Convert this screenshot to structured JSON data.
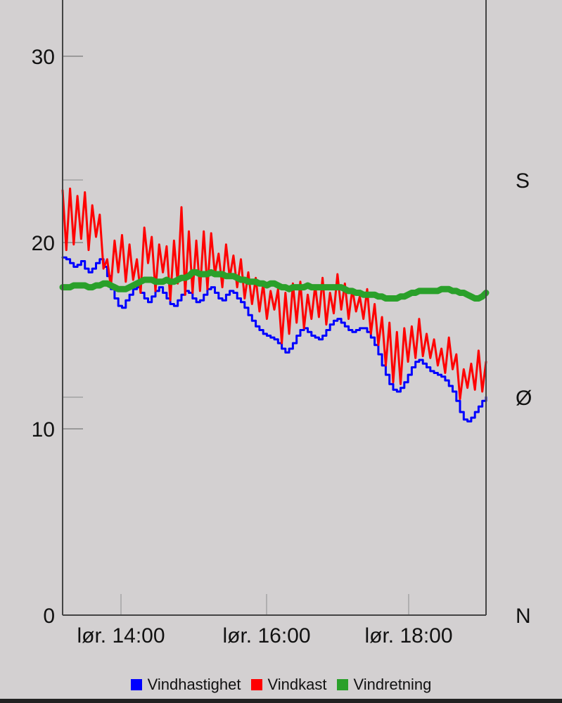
{
  "chart_data": {
    "type": "line",
    "x_ticks": [
      "lør. 14:00",
      "lør. 16:00",
      "lør. 18:00"
    ],
    "y_ticks": [
      "0",
      "10",
      "20",
      "30"
    ],
    "y_right_ticks": [
      "N",
      "Ø",
      "S"
    ],
    "ylim": [
      0,
      30
    ],
    "grid": false,
    "legend_position": "bottom",
    "series": [
      {
        "name": "Vindhastighet",
        "color": "#0000ff",
        "axis": "left",
        "values": [
          19.2,
          19.1,
          18.9,
          18.7,
          18.8,
          19.0,
          18.6,
          18.4,
          18.6,
          18.9,
          19.1,
          18.7,
          18.2,
          17.5,
          17.0,
          16.6,
          16.5,
          16.9,
          17.2,
          17.5,
          17.6,
          17.3,
          17.0,
          16.8,
          17.1,
          17.4,
          17.6,
          17.3,
          17.0,
          16.7,
          16.6,
          16.9,
          17.2,
          17.4,
          17.3,
          17.0,
          16.8,
          16.9,
          17.2,
          17.5,
          17.6,
          17.3,
          17.0,
          16.9,
          17.2,
          17.4,
          17.3,
          17.0,
          16.8,
          16.5,
          16.1,
          15.8,
          15.5,
          15.3,
          15.1,
          15.0,
          14.9,
          14.8,
          14.6,
          14.3,
          14.1,
          14.3,
          14.6,
          15.0,
          15.3,
          15.4,
          15.2,
          15.0,
          14.9,
          14.8,
          15.0,
          15.3,
          15.6,
          15.8,
          15.9,
          15.7,
          15.5,
          15.3,
          15.2,
          15.3,
          15.4,
          15.4,
          15.2,
          14.9,
          14.5,
          14.0,
          13.4,
          12.9,
          12.4,
          12.1,
          12.0,
          12.2,
          12.5,
          12.9,
          13.3,
          13.6,
          13.7,
          13.5,
          13.3,
          13.1,
          13.0,
          12.9,
          12.8,
          12.6,
          12.3,
          12.0,
          11.5,
          10.9,
          10.5,
          10.4,
          10.6,
          10.9,
          11.2,
          11.5,
          11.7
        ]
      },
      {
        "name": "Vindkast",
        "color": "#ff0000",
        "axis": "left",
        "values": [
          22.8,
          19.6,
          22.9,
          19.9,
          22.5,
          20.2,
          22.7,
          19.6,
          22.0,
          20.3,
          21.5,
          18.6,
          19.1,
          17.6,
          20.1,
          18.4,
          20.4,
          17.9,
          19.9,
          18.0,
          19.1,
          17.3,
          20.8,
          18.9,
          20.3,
          17.4,
          19.9,
          18.4,
          19.8,
          16.9,
          20.1,
          17.8,
          21.9,
          17.2,
          20.6,
          17.3,
          20.1,
          17.4,
          20.6,
          17.5,
          20.5,
          18.3,
          19.4,
          17.6,
          19.9,
          18.1,
          19.3,
          17.6,
          19.1,
          17.0,
          18.4,
          16.7,
          18.1,
          16.3,
          17.8,
          15.9,
          17.4,
          16.4,
          17.5,
          14.6,
          17.3,
          15.1,
          17.8,
          15.7,
          17.9,
          15.4,
          17.2,
          15.9,
          17.7,
          16.0,
          18.1,
          15.6,
          17.3,
          16.2,
          18.3,
          16.4,
          17.8,
          15.9,
          17.5,
          16.3,
          17.1,
          15.9,
          17.5,
          15.1,
          16.7,
          14.5,
          16.0,
          13.4,
          15.7,
          12.5,
          15.2,
          12.4,
          15.4,
          13.6,
          15.5,
          13.8,
          15.9,
          13.9,
          15.1,
          13.8,
          14.8,
          13.4,
          14.3,
          13.0,
          14.9,
          13.2,
          14.0,
          11.6,
          13.2,
          12.2,
          13.5,
          12.1,
          14.2,
          12.0,
          13.6
        ]
      },
      {
        "name": "Vindretning",
        "color": "#2aa02a",
        "axis": "right",
        "values": [
          17.6,
          17.6,
          17.6,
          17.7,
          17.7,
          17.7,
          17.7,
          17.6,
          17.6,
          17.7,
          17.7,
          17.8,
          17.8,
          17.7,
          17.6,
          17.5,
          17.5,
          17.5,
          17.6,
          17.7,
          17.8,
          17.9,
          18.0,
          18.0,
          18.0,
          17.9,
          17.9,
          17.9,
          18.0,
          17.9,
          17.9,
          18.0,
          18.1,
          18.1,
          18.2,
          18.4,
          18.4,
          18.3,
          18.3,
          18.3,
          18.4,
          18.3,
          18.3,
          18.3,
          18.2,
          18.2,
          18.2,
          18.1,
          18.0,
          18.0,
          17.9,
          17.9,
          17.9,
          17.8,
          17.8,
          17.7,
          17.8,
          17.8,
          17.7,
          17.6,
          17.6,
          17.5,
          17.6,
          17.6,
          17.6,
          17.6,
          17.7,
          17.6,
          17.6,
          17.6,
          17.6,
          17.6,
          17.6,
          17.6,
          17.6,
          17.6,
          17.5,
          17.4,
          17.4,
          17.3,
          17.3,
          17.2,
          17.2,
          17.2,
          17.2,
          17.1,
          17.1,
          17.0,
          17.0,
          17.0,
          17.0,
          17.1,
          17.1,
          17.2,
          17.3,
          17.3,
          17.4,
          17.4,
          17.4,
          17.4,
          17.4,
          17.4,
          17.5,
          17.5,
          17.5,
          17.4,
          17.4,
          17.3,
          17.3,
          17.2,
          17.1,
          17.0,
          17.0,
          17.1,
          17.3
        ]
      }
    ]
  }
}
